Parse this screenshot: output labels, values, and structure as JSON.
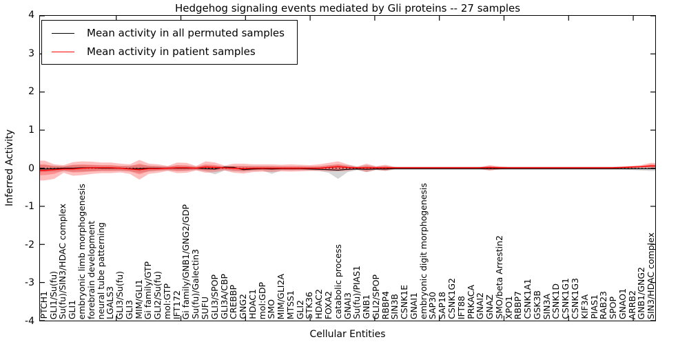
{
  "chart_data": {
    "type": "line",
    "title": "Hedgehog signaling events mediated by Gli proteins -- 27 samples",
    "xlabel": "Cellular Entities",
    "ylabel": "Inferred Activity",
    "ylim": [
      -4,
      4
    ],
    "yticks": [
      4,
      3,
      2,
      1,
      0,
      -1,
      -2,
      -3,
      -4
    ],
    "grid": false,
    "zero_line": 0,
    "legend": {
      "position": "upper left",
      "entries": [
        {
          "label": "Mean activity in all permuted samples",
          "color": "#000000"
        },
        {
          "label": "Mean activity in patient samples",
          "color": "#ff0000"
        }
      ]
    },
    "categories": [
      "PTCH1",
      "GLI1/Su(fu)",
      "Su(fu)/SIN3/HDAC complex",
      "GLI1",
      "embryonic limb morphogenesis",
      "forebrain development",
      "neural tube patterning",
      "LGALS3",
      "GLI3/Su(fu)",
      "GLI3",
      "MIM/GLI1",
      "Gi family/GTP",
      "GLI2/Su(fu)",
      "mol:GTP",
      "IFT172",
      "Gi family/GNB1/GNG2/GDP",
      "Su(fu)/Galectin3",
      "SUFU",
      "GLI3/SPOP",
      "GLI3A/CBP",
      "CREBBP",
      "GNG2",
      "HDAC1",
      "mol:GDP",
      "SMO",
      "MIM/GLI2A",
      "MTSS1",
      "GLI2",
      "STK36",
      "HDAC2",
      "FOXA2",
      "catabolic process",
      "GNAI3",
      "Su(fu)/PIAS1",
      "GNB1",
      "GLI2/SPOP",
      "RBBP4",
      "SIN3B",
      "CSNK1E",
      "GNAI1",
      "embryonic digit morphogenesis",
      "SAP30",
      "SAP18",
      "CSNK1G2",
      "IFT88",
      "PRKACA",
      "GNAI2",
      "GNAZ",
      "SMO/beta Arrestin2",
      "XPO1",
      "RBBP7",
      "CSNK1A1",
      "GSK3B",
      "SIN3A",
      "CSNK1D",
      "CSNK1G1",
      "CSNK1G3",
      "KIF3A",
      "PIAS1",
      "RAB23",
      "SPOP",
      "GNAO1",
      "ARRB2",
      "GNB1/GNG2",
      "SIN3/HDAC complex"
    ],
    "series": [
      {
        "name": "mean-permuted",
        "label": "Mean activity in all permuted samples",
        "color": "#000000",
        "values": [
          -0.02,
          -0.01,
          0,
          0,
          0.01,
          0.01,
          0,
          0,
          0,
          -0.01,
          -0.01,
          0,
          0,
          0,
          0,
          0,
          0,
          -0.01,
          -0.02,
          0.03,
          0.02,
          -0.04,
          -0.02,
          -0.01,
          -0.02,
          -0.01,
          -0.01,
          -0.01,
          -0.02,
          -0.03,
          -0.04,
          -0.05,
          -0.03,
          -0.02,
          -0.03,
          -0.02,
          -0.02,
          -0.01,
          -0.01,
          -0.01,
          -0.01,
          -0.01,
          -0.01,
          -0.01,
          -0.01,
          -0.01,
          -0.01,
          -0.01,
          -0.01,
          -0.01,
          -0.01,
          -0.01,
          -0.01,
          -0.01,
          -0.01,
          -0.01,
          -0.01,
          -0.01,
          -0.01,
          -0.01,
          -0.01,
          -0.01,
          -0.01,
          -0.01,
          -0.01
        ]
      },
      {
        "name": "mean-patient",
        "label": "Mean activity in patient samples",
        "color": "#ff0000",
        "values": [
          -0.06,
          -0.04,
          -0.02,
          -0.02,
          0,
          0.01,
          0.01,
          0.01,
          0,
          -0.02,
          -0.04,
          -0.01,
          -0.01,
          0,
          0.01,
          0.01,
          0,
          0.03,
          0.02,
          0.01,
          0,
          -0.01,
          0,
          0,
          0,
          0,
          0,
          0,
          0,
          0,
          0.02,
          0.04,
          0.02,
          0.01,
          0.01,
          0.01,
          0.01,
          0.01,
          0.01,
          0.01,
          0.01,
          0.01,
          0.01,
          0.01,
          0.01,
          0.01,
          0.01,
          0.02,
          0.01,
          0.01,
          0.01,
          0.01,
          0.01,
          0.01,
          0.01,
          0.01,
          0.01,
          0.01,
          0.01,
          0.01,
          0.01,
          0.02,
          0.03,
          0.04,
          0.06
        ]
      }
    ],
    "bands": [
      {
        "name": "permuted-spread",
        "color": "#8a8a8a",
        "opacity": 0.35,
        "hi": [
          0.08,
          0.07,
          0.06,
          0.08,
          0.08,
          0.08,
          0.07,
          0.07,
          0.06,
          0.07,
          0.09,
          0.07,
          0.06,
          0.05,
          0.07,
          0.07,
          0.05,
          0.08,
          0.07,
          0.05,
          0.06,
          0.06,
          0.06,
          0.06,
          0.06,
          0.05,
          0.05,
          0.05,
          0.05,
          0.05,
          0.08,
          0.1,
          0.08,
          0.05,
          0.08,
          0.05,
          0.06,
          0.04,
          0.04,
          0.04,
          0.04,
          0.04,
          0.04,
          0.04,
          0.04,
          0.04,
          0.04,
          0.05,
          0.04,
          0.04,
          0.04,
          0.04,
          0.04,
          0.04,
          0.04,
          0.04,
          0.04,
          0.04,
          0.04,
          0.04,
          0.04,
          0.04,
          0.05,
          0.06,
          0.07
        ],
        "lo": [
          -0.1,
          -0.09,
          -0.08,
          -0.09,
          -0.08,
          -0.08,
          -0.07,
          -0.07,
          -0.07,
          -0.08,
          -0.12,
          -0.08,
          -0.07,
          -0.06,
          -0.07,
          -0.07,
          -0.05,
          -0.08,
          -0.16,
          -0.06,
          -0.08,
          -0.09,
          -0.07,
          -0.06,
          -0.15,
          -0.06,
          -0.06,
          -0.06,
          -0.06,
          -0.07,
          -0.12,
          -0.28,
          -0.1,
          -0.05,
          -0.1,
          -0.05,
          -0.07,
          -0.04,
          -0.04,
          -0.04,
          -0.04,
          -0.04,
          -0.04,
          -0.04,
          -0.04,
          -0.04,
          -0.04,
          -0.06,
          -0.04,
          -0.04,
          -0.04,
          -0.04,
          -0.04,
          -0.04,
          -0.04,
          -0.04,
          -0.04,
          -0.04,
          -0.04,
          -0.04,
          -0.04,
          -0.04,
          -0.05,
          -0.06,
          -0.07
        ]
      },
      {
        "name": "patient-spread-outer",
        "color": "#ff2a2a",
        "opacity": 0.3,
        "hi": [
          0.2,
          0.1,
          0.08,
          0.16,
          0.18,
          0.17,
          0.15,
          0.15,
          0.12,
          0.1,
          0.22,
          0.12,
          0.1,
          0.06,
          0.15,
          0.14,
          0.06,
          0.18,
          0.15,
          0.07,
          0.12,
          0.12,
          0.1,
          0.1,
          0.1,
          0.09,
          0.1,
          0.09,
          0.08,
          0.1,
          0.14,
          0.18,
          0.1,
          0.04,
          0.12,
          0.05,
          0.09,
          0.03,
          0.03,
          0.03,
          0.03,
          0.03,
          0.03,
          0.03,
          0.03,
          0.03,
          0.03,
          0.08,
          0.05,
          0.03,
          0.03,
          0.03,
          0.03,
          0.03,
          0.03,
          0.03,
          0.03,
          0.03,
          0.03,
          0.03,
          0.03,
          0.04,
          0.06,
          0.08,
          0.14
        ],
        "lo": [
          -0.32,
          -0.28,
          -0.12,
          -0.2,
          -0.18,
          -0.15,
          -0.13,
          -0.13,
          -0.11,
          -0.15,
          -0.3,
          -0.15,
          -0.12,
          -0.07,
          -0.13,
          -0.12,
          -0.06,
          -0.12,
          -0.1,
          -0.06,
          -0.12,
          -0.14,
          -0.1,
          -0.09,
          -0.1,
          -0.08,
          -0.09,
          -0.08,
          -0.07,
          -0.07,
          -0.08,
          -0.08,
          -0.07,
          -0.03,
          -0.1,
          -0.04,
          -0.07,
          -0.02,
          -0.02,
          -0.02,
          -0.02,
          -0.02,
          -0.02,
          -0.02,
          -0.02,
          -0.02,
          -0.02,
          -0.06,
          -0.03,
          -0.02,
          -0.02,
          -0.02,
          -0.02,
          -0.02,
          -0.02,
          -0.02,
          -0.02,
          -0.02,
          -0.02,
          -0.02,
          -0.02,
          -0.01,
          0.0,
          0.01,
          0.01
        ]
      },
      {
        "name": "patient-spread-inner",
        "color": "#ff2a2a",
        "opacity": 0.32,
        "hi": [
          0.1,
          0.05,
          0.04,
          0.09,
          0.1,
          0.09,
          0.08,
          0.08,
          0.06,
          0.05,
          0.12,
          0.06,
          0.05,
          0.03,
          0.08,
          0.07,
          0.03,
          0.1,
          0.08,
          0.04,
          0.06,
          0.06,
          0.05,
          0.05,
          0.05,
          0.05,
          0.05,
          0.05,
          0.04,
          0.05,
          0.07,
          0.1,
          0.05,
          0.02,
          0.06,
          0.03,
          0.05,
          0.02,
          0.02,
          0.02,
          0.02,
          0.02,
          0.02,
          0.02,
          0.02,
          0.02,
          0.02,
          0.04,
          0.03,
          0.02,
          0.02,
          0.02,
          0.02,
          0.02,
          0.02,
          0.02,
          0.02,
          0.02,
          0.02,
          0.02,
          0.02,
          0.03,
          0.04,
          0.06,
          0.1
        ],
        "lo": [
          -0.18,
          -0.15,
          -0.06,
          -0.11,
          -0.1,
          -0.08,
          -0.07,
          -0.07,
          -0.06,
          -0.08,
          -0.16,
          -0.08,
          -0.06,
          -0.04,
          -0.07,
          -0.06,
          -0.03,
          -0.06,
          -0.05,
          -0.03,
          -0.06,
          -0.07,
          -0.05,
          -0.05,
          -0.05,
          -0.04,
          -0.05,
          -0.04,
          -0.04,
          -0.04,
          -0.04,
          -0.04,
          -0.04,
          -0.02,
          -0.05,
          -0.02,
          -0.04,
          -0.01,
          -0.01,
          -0.01,
          -0.01,
          -0.01,
          -0.01,
          -0.01,
          -0.01,
          -0.01,
          -0.01,
          -0.03,
          -0.02,
          -0.01,
          -0.01,
          -0.01,
          -0.01,
          -0.01,
          -0.01,
          -0.01,
          -0.01,
          -0.01,
          -0.01,
          -0.01,
          -0.01,
          0.0,
          0.01,
          0.03,
          0.03
        ]
      }
    ]
  }
}
